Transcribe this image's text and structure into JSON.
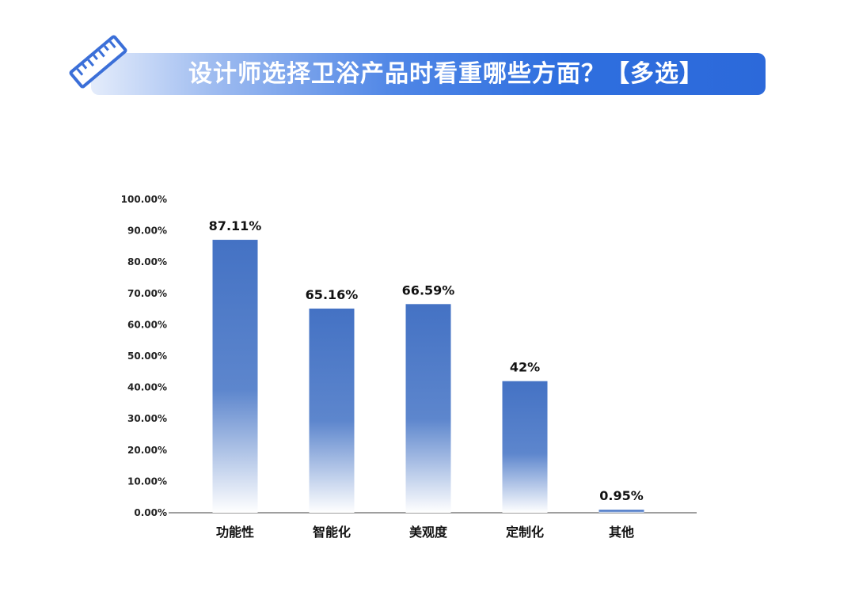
{
  "header": {
    "title": "设计师选择卫浴产品时看重哪些方面？【多选】",
    "icon": "ruler-icon"
  },
  "colors": {
    "bar": "#4472c4",
    "banner": "#2f6fdf",
    "axis": "#666666",
    "text": "#111111"
  },
  "chart_data": {
    "type": "bar",
    "title": "设计师选择卫浴产品时看重哪些方面？【多选】",
    "categories": [
      "功能性",
      "智能化",
      "美观度",
      "定制化",
      "其他"
    ],
    "values": [
      87.11,
      65.16,
      66.59,
      42,
      0.95
    ],
    "data_labels": [
      "87.11%",
      "65.16%",
      "66.59%",
      "42%",
      "0.95%"
    ],
    "y_ticks": [
      "0.00%",
      "10.00%",
      "20.00%",
      "30.00%",
      "40.00%",
      "50.00%",
      "60.00%",
      "70.00%",
      "80.00%",
      "90.00%",
      "100.00%"
    ],
    "ylim": [
      0,
      100
    ],
    "grid": false,
    "legend": "none"
  }
}
